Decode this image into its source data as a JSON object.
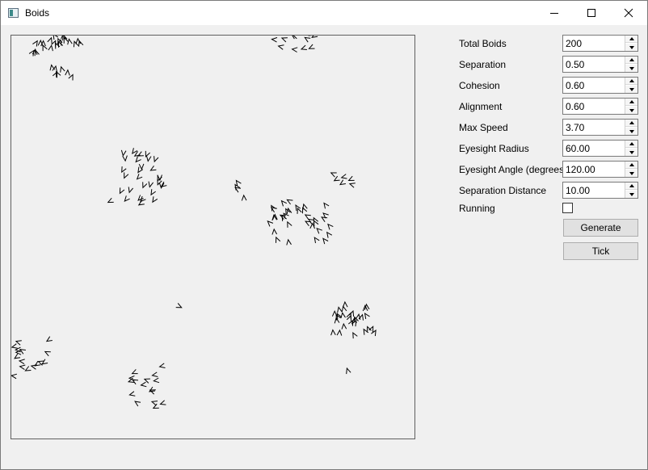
{
  "window": {
    "title": "Boids"
  },
  "controls": {
    "total_boids": {
      "label": "Total Boids",
      "value": "200"
    },
    "separation": {
      "label": "Separation",
      "value": "0.50"
    },
    "cohesion": {
      "label": "Cohesion",
      "value": "0.60"
    },
    "alignment": {
      "label": "Alignment",
      "value": "0.60"
    },
    "max_speed": {
      "label": "Max Speed",
      "value": "3.70"
    },
    "eyesight_radius": {
      "label": "Eyesight Radius",
      "value": "60.00"
    },
    "eyesight_angle": {
      "label": "Eyesight Angle (degrees)",
      "value": "120.00"
    },
    "separation_distance": {
      "label": "Separation Distance",
      "value": "10.00"
    },
    "running": {
      "label": "Running",
      "checked": false
    }
  },
  "buttons": {
    "generate": "Generate",
    "tick": "Tick"
  },
  "icons": [
    "app-icon",
    "minimize-icon",
    "maximize-icon",
    "close-icon",
    "spin-up-icon",
    "spin-down-icon"
  ]
}
